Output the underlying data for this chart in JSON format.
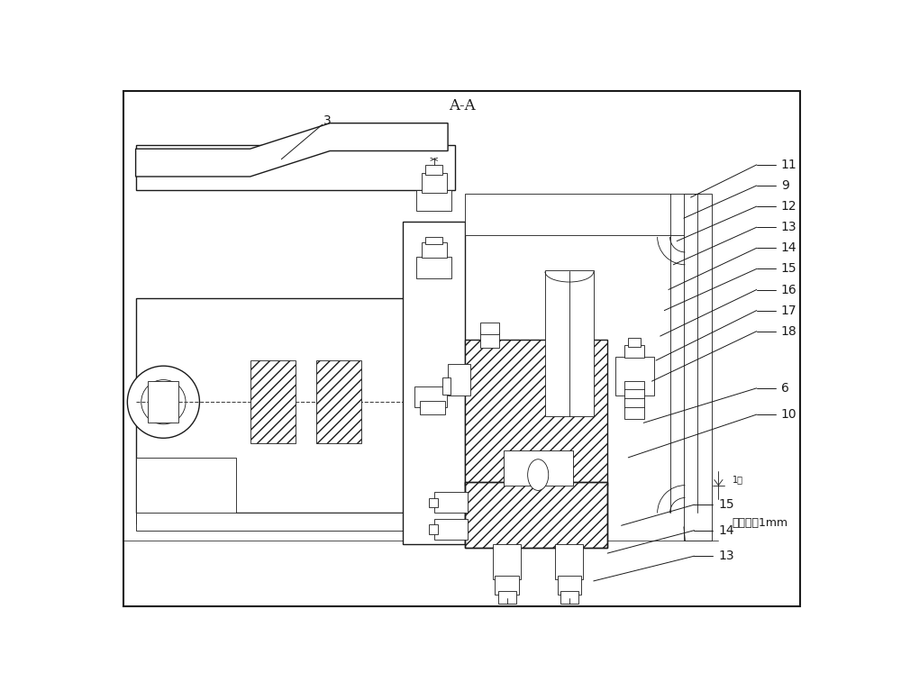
{
  "title": "A-A",
  "bg": "#ffffff",
  "lc": "#1a1a1a",
  "fs_label": 10,
  "fs_title": 12,
  "note_text": "距离保证1mm"
}
